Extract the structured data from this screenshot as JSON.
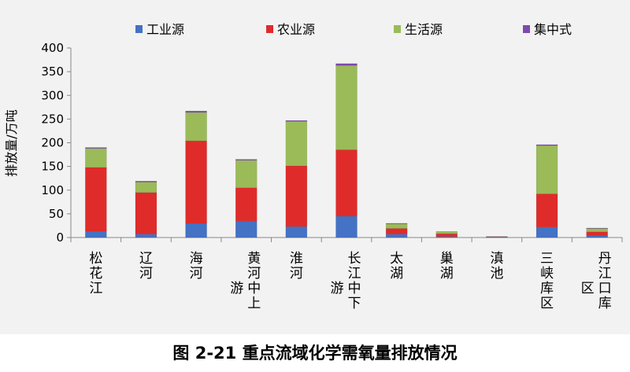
{
  "caption": "图 2-21 重点流域化学需氧量排放情况",
  "chart_data": {
    "type": "bar",
    "stacked": true,
    "ylabel": "排放量/万吨",
    "xlabel": "",
    "ylim": [
      0,
      400
    ],
    "yticks": [
      0,
      50,
      100,
      150,
      200,
      250,
      300,
      350,
      400
    ],
    "grid": false,
    "legend_position": "top",
    "categories": [
      [
        "松",
        "花",
        "江"
      ],
      [
        "辽",
        "河"
      ],
      [
        "海",
        "河"
      ],
      [
        "黄",
        "河",
        "中",
        "上",
        "游"
      ],
      [
        "淮",
        "河"
      ],
      [
        "长",
        "江",
        "中",
        "下",
        "游"
      ],
      [
        "太",
        "湖"
      ],
      [
        "巢",
        "湖"
      ],
      [
        "滇",
        "池"
      ],
      [
        "三",
        "峡",
        "库",
        "区"
      ],
      [
        "丹",
        "江",
        "口",
        "库",
        "区"
      ]
    ],
    "series": [
      {
        "name": "工业源",
        "color": "#4472c4",
        "values": [
          13,
          7,
          30,
          35,
          23,
          45,
          7,
          2,
          0.5,
          22,
          5
        ]
      },
      {
        "name": "农业源",
        "color": "#e02b2b",
        "values": [
          135,
          88,
          174,
          70,
          128,
          140,
          12,
          6,
          1,
          70,
          7
        ]
      },
      {
        "name": "生活源",
        "color": "#9bbb59",
        "values": [
          40,
          22,
          60,
          58,
          94,
          178,
          10,
          4,
          0.5,
          102,
          7
        ]
      },
      {
        "name": "集中式",
        "color": "#7f49b0",
        "values": [
          2,
          2,
          3,
          2,
          2,
          4,
          1,
          0.5,
          0.2,
          2,
          1
        ]
      }
    ]
  }
}
